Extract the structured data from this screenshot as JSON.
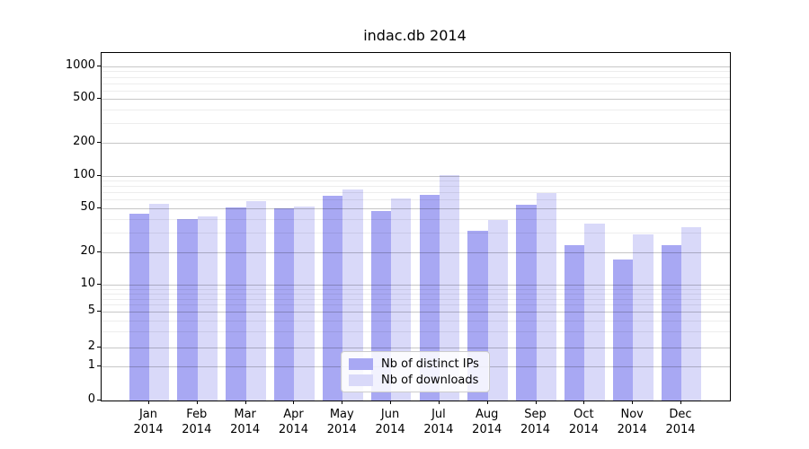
{
  "figure": {
    "background": "#ffffff"
  },
  "chart_data": {
    "type": "bar",
    "title": "indac.db 2014",
    "categories": [
      "Jan 2014",
      "Feb 2014",
      "Mar 2014",
      "Apr 2014",
      "May 2014",
      "Jun 2014",
      "Jul 2014",
      "Aug 2014",
      "Sep 2014",
      "Oct 2014",
      "Nov 2014",
      "Dec 2014"
    ],
    "series": [
      {
        "name": "Nb of distinct IPs",
        "color": "#a8a8f3",
        "values": [
          45,
          40,
          51,
          50,
          65,
          47,
          66,
          31,
          54,
          23,
          17,
          23
        ]
      },
      {
        "name": "Nb of downloads",
        "color": "#d9d9f9",
        "values": [
          55,
          42,
          58,
          52,
          74,
          62,
          101,
          39,
          69,
          36,
          29,
          34
        ]
      }
    ],
    "xlabel": "",
    "ylabel": "",
    "yscale": "symlog",
    "ylim": [
      0,
      1320
    ],
    "y_major_ticks": [
      0,
      1,
      2,
      5,
      10,
      20,
      50,
      100,
      200,
      500,
      1000
    ],
    "y_minor_ticks": [
      3,
      4,
      6,
      7,
      8,
      9,
      30,
      40,
      60,
      70,
      80,
      90,
      300,
      400,
      600,
      700,
      800,
      900
    ],
    "grid": true,
    "legend_position": "bottom-center"
  }
}
